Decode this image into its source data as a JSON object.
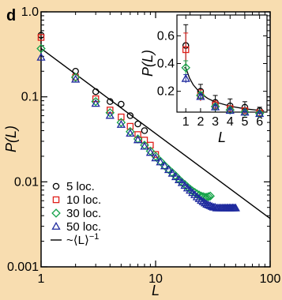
{
  "panel_label": "d",
  "chart_data": [
    {
      "type": "scatter",
      "scale": "log-log",
      "xlabel": "L",
      "ylabel": "P(L)",
      "xlim": [
        1,
        100
      ],
      "ylim": [
        0.001,
        1.0
      ],
      "x_ticks": [
        1,
        10,
        100
      ],
      "x_tick_labels": [
        "1",
        "10",
        "100"
      ],
      "y_ticks": [
        0.001,
        0.01,
        0.1,
        1.0
      ],
      "y_tick_labels": [
        "0.001",
        "0.01",
        "0.1",
        "1.0"
      ],
      "grid": false,
      "legend_position": "bottom-left",
      "series": [
        {
          "name": "5 loc.",
          "color": "#000000",
          "marker": "circle",
          "x": [
            1,
            2,
            3,
            4,
            5,
            6,
            7,
            8
          ],
          "y": [
            0.53,
            0.2,
            0.115,
            0.088,
            0.082,
            0.06,
            0.048,
            0.04
          ]
        },
        {
          "name": "10 loc.",
          "color": "#e0201b",
          "marker": "square",
          "x": [
            1,
            2,
            3,
            4,
            5,
            6,
            7,
            8,
            9,
            10
          ],
          "y": [
            0.5,
            0.17,
            0.095,
            0.07,
            0.058,
            0.045,
            0.036,
            0.031,
            0.027,
            0.021
          ]
        },
        {
          "name": "30 loc.",
          "color": "#16a34a",
          "marker": "diamond",
          "x": [
            1,
            2,
            3,
            4,
            5,
            6,
            7,
            8,
            9,
            10,
            11,
            12,
            13,
            14,
            15,
            16,
            17,
            18,
            19,
            20,
            21,
            22,
            23,
            24,
            25,
            26,
            27,
            28,
            29,
            30
          ],
          "y": [
            0.37,
            0.17,
            0.088,
            0.065,
            0.05,
            0.039,
            0.032,
            0.027,
            0.023,
            0.02,
            0.0175,
            0.0155,
            0.014,
            0.0128,
            0.0117,
            0.0107,
            0.0099,
            0.0093,
            0.0087,
            0.0082,
            0.0078,
            0.0075,
            0.0072,
            0.007,
            0.0068,
            0.0067,
            0.0066,
            0.0066,
            0.0067,
            0.0068
          ]
        },
        {
          "name": "50 loc.",
          "color": "#1f2a9e",
          "marker": "triangle",
          "x": [
            1,
            2,
            3,
            4,
            5,
            6,
            7,
            8,
            9,
            10,
            11,
            12,
            13,
            14,
            15,
            16,
            17,
            18,
            19,
            20,
            21,
            22,
            23,
            24,
            25,
            26,
            27,
            28,
            29,
            30,
            31,
            32,
            33,
            34,
            35,
            36,
            37,
            38,
            39,
            40,
            41,
            42,
            43,
            44,
            45,
            46,
            47,
            48,
            49,
            50
          ],
          "y": [
            0.29,
            0.16,
            0.083,
            0.06,
            0.047,
            0.037,
            0.031,
            0.026,
            0.022,
            0.019,
            0.017,
            0.0153,
            0.0138,
            0.0125,
            0.0114,
            0.0105,
            0.0097,
            0.009,
            0.0084,
            0.0079,
            0.0074,
            0.007,
            0.0066,
            0.0063,
            0.006,
            0.0058,
            0.0056,
            0.0054,
            0.0053,
            0.0052,
            0.0051,
            0.005,
            0.005,
            0.0049,
            0.0049,
            0.0049,
            0.0049,
            0.0049,
            0.0049,
            0.0049,
            0.0049,
            0.0049,
            0.0049,
            0.0049,
            0.0049,
            0.0049,
            0.0049,
            0.0049,
            0.0049,
            0.0049
          ]
        },
        {
          "name": "~⟨L⟩",
          "name_sup": "−1",
          "color": "#000000",
          "marker": "line",
          "x": [
            1,
            100
          ],
          "y": [
            0.37,
            0.0037
          ]
        }
      ]
    },
    {
      "type": "scatter",
      "scale": "linear",
      "xlabel": "L",
      "ylabel": "P(L)",
      "xlim": [
        0.4,
        6.5
      ],
      "ylim": [
        0.05,
        0.75
      ],
      "x_ticks": [
        1,
        2,
        3,
        4,
        5,
        6
      ],
      "x_tick_labels": [
        "1",
        "2",
        "3",
        "4",
        "5",
        "6"
      ],
      "y_ticks": [
        0.2,
        0.4,
        0.6
      ],
      "y_tick_labels": [
        "0.2",
        "0.4",
        "0.6"
      ],
      "grid": false,
      "series": [
        {
          "name": "5 loc.",
          "color": "#000000",
          "marker": "circle",
          "x": [
            1,
            2,
            3,
            4,
            5,
            6
          ],
          "y": [
            0.53,
            0.2,
            0.12,
            0.095,
            0.085,
            0.06
          ],
          "err": [
            0.15,
            0.05,
            0.05,
            0.05,
            0.04,
            0.025
          ]
        },
        {
          "name": "10 loc.",
          "color": "#e0201b",
          "marker": "square",
          "x": [
            1,
            2,
            3,
            4,
            5,
            6
          ],
          "y": [
            0.5,
            0.17,
            0.1,
            0.075,
            0.06,
            0.045
          ],
          "err": [
            0.12,
            0.04,
            0.03,
            0.02,
            0.02,
            0.015
          ]
        },
        {
          "name": "30 loc.",
          "color": "#16a34a",
          "marker": "diamond",
          "x": [
            1,
            2,
            3,
            4,
            5,
            6
          ],
          "y": [
            0.37,
            0.17,
            0.09,
            0.065,
            0.05,
            0.04
          ],
          "err": [
            0.05,
            0.025,
            0.015,
            0.01,
            0.01,
            0.008
          ]
        },
        {
          "name": "50 loc.",
          "color": "#1f2a9e",
          "marker": "triangle",
          "x": [
            1,
            2,
            3,
            4,
            5,
            6
          ],
          "y": [
            0.29,
            0.16,
            0.085,
            0.06,
            0.047,
            0.037
          ],
          "err": [
            0.03,
            0.02,
            0.01,
            0.008,
            0.006,
            0.005
          ]
        },
        {
          "name": "~⟨L⟩⁻¹",
          "color": "#000000",
          "marker": "line",
          "x": [
            0.9,
            1,
            1.25,
            1.5,
            2,
            2.5,
            3,
            4,
            5,
            6,
            6.3
          ],
          "y": [
            0.37,
            0.37,
            0.296,
            0.247,
            0.185,
            0.148,
            0.123,
            0.0925,
            0.074,
            0.062,
            0.059
          ]
        }
      ]
    }
  ]
}
